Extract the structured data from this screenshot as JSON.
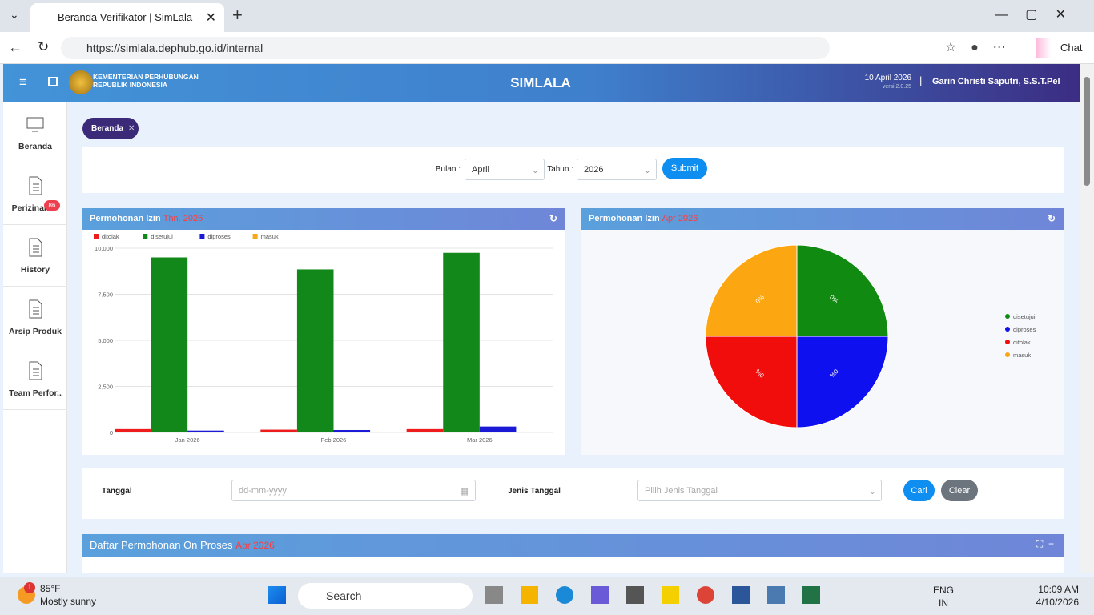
{
  "browser": {
    "tab_title": "Beranda Verifikator | SimLala",
    "url": "https://simlala.dephub.go.id/internal",
    "copilot": "Chat"
  },
  "header": {
    "org": [
      "KEMENTERIAN PERHUBUNGAN",
      "REPUBLIK INDONESIA"
    ],
    "app": "SIMLALA",
    "date": "10 April 2026",
    "version": "versi 2.0.25",
    "user": "Garin Christi Saputri, S.S.T.Pel"
  },
  "sidebar": [
    {
      "label": "Beranda"
    },
    {
      "label": "Perizinan",
      "badge": 86
    },
    {
      "label": "History"
    },
    {
      "label": "Arsip Produk"
    },
    {
      "label": "Team Perfor.."
    }
  ],
  "breadcrumb": "Beranda",
  "filter": {
    "month_label": "Bulan :",
    "month": "April",
    "year_label": "Tahun :",
    "year": "2026",
    "submit": "Submit"
  },
  "chart_data": [
    {
      "type": "bar",
      "title": "Permohonan Izin",
      "subtitle": "Thn. 2026",
      "legend": "top-left",
      "grid": true,
      "categories": [
        "Jan 2026",
        "Feb 2026",
        "Mar 2026"
      ],
      "series": [
        {
          "name": "ditolak",
          "color": "#ee1c1c",
          "values": [
            180,
            150,
            180
          ]
        },
        {
          "name": "disetujui",
          "color": "#12881a",
          "values": [
            9500,
            8850,
            9750
          ]
        },
        {
          "name": "diproses",
          "color": "#1a1ad6",
          "values": [
            100,
            130,
            320
          ]
        },
        {
          "name": "masuk",
          "color": "#f5a818",
          "values": [
            0,
            0,
            0
          ]
        }
      ],
      "ylim": [
        0,
        10000
      ],
      "yticks": [
        0,
        {
          "value": 2500,
          "label": "2.500"
        },
        {
          "value": 5000,
          "label": "5.000"
        },
        {
          "value": 7500,
          "label": "7.500"
        },
        {
          "value": 10000,
          "label": "10.000"
        }
      ]
    },
    {
      "type": "pie",
      "title": "Permohonan Izin",
      "subtitle": "Apr 2026",
      "legend": "right",
      "categories": [
        "disetujui",
        "diproses",
        "ditolak",
        "masuk"
      ],
      "colors": [
        "#118a12",
        "#0f10f0",
        "#f20d0d",
        "#fca611"
      ],
      "values": [
        0,
        0,
        0,
        0
      ],
      "value_labels": [
        "0%",
        "0%",
        "0%",
        "0%"
      ]
    }
  ],
  "search_form": {
    "date_label": "Tanggal",
    "date_placeholder": "dd-mm-yyyy",
    "type_label": "Jenis Tanggal",
    "type_placeholder": "Pilih Jenis Tanggal",
    "search": "Cari",
    "clear": "Clear"
  },
  "section": {
    "title": "Daftar Permohonan On Proses",
    "period": "Apr 2026"
  },
  "taskbar": {
    "weather_badge": "1",
    "temperature": "85°F",
    "weather": "Mostly sunny",
    "search": "Search",
    "lang": "ENG",
    "region": "IN",
    "time": "10:09 AM",
    "date": "4/10/2026"
  }
}
